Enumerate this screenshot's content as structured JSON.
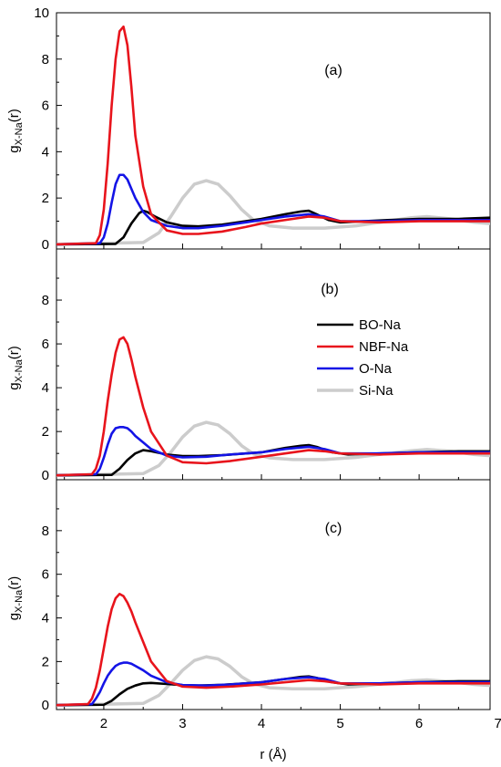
{
  "chart_data": {
    "type": "line",
    "xlabel": "r (Å)",
    "ylabel_main": "g",
    "ylabel_sub": "X-Na",
    "ylabel_suffix": "(r)",
    "xlim": [
      1.4,
      6.9
    ],
    "xticks": [
      2,
      3,
      4,
      5,
      6,
      7
    ],
    "ylim": [
      -0.2,
      10
    ],
    "yticks": [
      0,
      2,
      4,
      6,
      8,
      10
    ],
    "legend": {
      "placement": "inside panel (b), right",
      "entries": [
        "BO-Na",
        "NBF-Na",
        "O-Na",
        "Si-Na"
      ]
    },
    "series_colors": {
      "BO-Na": "#000000",
      "NBF-Na": "#e8141c",
      "O-Na": "#1414e6",
      "Si-Na": "#cccccc"
    },
    "panels": [
      {
        "label": "(a)",
        "show_top_ytick": true,
        "series": [
          {
            "name": "BO-Na",
            "x": [
              1.4,
              2.15,
              2.25,
              2.35,
              2.45,
              2.5,
              2.55,
              2.65,
              2.8,
              3.0,
              3.2,
              3.5,
              3.8,
              4.0,
              4.3,
              4.5,
              4.6,
              4.7,
              4.85,
              5.0,
              5.3,
              5.6,
              6.0,
              6.5,
              6.9
            ],
            "y": [
              0,
              0.02,
              0.3,
              0.9,
              1.35,
              1.45,
              1.4,
              1.2,
              0.95,
              0.8,
              0.78,
              0.85,
              1.0,
              1.1,
              1.3,
              1.42,
              1.45,
              1.3,
              1.05,
              0.95,
              1.0,
              1.05,
              1.1,
              1.1,
              1.15
            ]
          },
          {
            "name": "NBF-Na",
            "x": [
              1.4,
              1.9,
              1.95,
              2.0,
              2.05,
              2.1,
              2.15,
              2.2,
              2.25,
              2.3,
              2.35,
              2.4,
              2.5,
              2.6,
              2.8,
              3.0,
              3.2,
              3.5,
              3.8,
              4.0,
              4.3,
              4.6,
              4.8,
              5.0,
              5.5,
              6.0,
              6.5,
              6.9
            ],
            "y": [
              0,
              0.05,
              0.4,
              1.5,
              3.5,
              6.0,
              8.0,
              9.2,
              9.4,
              8.6,
              6.8,
              4.7,
              2.5,
              1.3,
              0.6,
              0.45,
              0.45,
              0.55,
              0.75,
              0.9,
              1.05,
              1.2,
              1.15,
              1.0,
              0.95,
              1.0,
              1.0,
              1.0
            ]
          },
          {
            "name": "O-Na",
            "x": [
              1.4,
              1.95,
              2.0,
              2.05,
              2.1,
              2.15,
              2.2,
              2.25,
              2.3,
              2.35,
              2.4,
              2.5,
              2.6,
              2.8,
              3.0,
              3.2,
              3.5,
              3.8,
              4.0,
              4.3,
              4.6,
              4.8,
              5.0,
              5.5,
              6.0,
              6.5,
              6.9
            ],
            "y": [
              0,
              0.05,
              0.3,
              0.9,
              1.8,
              2.6,
              3.0,
              3.0,
              2.8,
              2.4,
              2.0,
              1.4,
              1.05,
              0.8,
              0.7,
              0.7,
              0.8,
              0.95,
              1.05,
              1.2,
              1.3,
              1.2,
              1.0,
              1.0,
              1.05,
              1.05,
              1.05
            ]
          },
          {
            "name": "Si-Na",
            "x": [
              1.4,
              2.5,
              2.7,
              2.85,
              3.0,
              3.15,
              3.3,
              3.45,
              3.6,
              3.75,
              3.9,
              4.1,
              4.4,
              4.8,
              5.2,
              5.6,
              5.9,
              6.1,
              6.4,
              6.7,
              6.9
            ],
            "y": [
              0,
              0.08,
              0.5,
              1.2,
              2.0,
              2.6,
              2.75,
              2.6,
              2.1,
              1.5,
              1.05,
              0.8,
              0.7,
              0.7,
              0.8,
              1.0,
              1.15,
              1.2,
              1.1,
              0.95,
              0.9
            ]
          }
        ]
      },
      {
        "label": "(b)",
        "show_top_ytick": false,
        "series": [
          {
            "name": "BO-Na",
            "x": [
              1.4,
              2.1,
              2.2,
              2.3,
              2.4,
              2.5,
              2.6,
              2.8,
              3.0,
              3.2,
              3.5,
              4.0,
              4.3,
              4.5,
              4.6,
              4.7,
              4.9,
              5.1,
              5.5,
              6.0,
              6.5,
              6.9
            ],
            "y": [
              0,
              0.02,
              0.3,
              0.7,
              1.0,
              1.15,
              1.1,
              0.95,
              0.88,
              0.88,
              0.92,
              1.05,
              1.25,
              1.35,
              1.38,
              1.3,
              1.05,
              0.95,
              1.0,
              1.05,
              1.1,
              1.1
            ]
          },
          {
            "name": "NBF-Na",
            "x": [
              1.4,
              1.85,
              1.9,
              1.95,
              2.0,
              2.05,
              2.1,
              2.15,
              2.2,
              2.25,
              2.3,
              2.35,
              2.4,
              2.5,
              2.6,
              2.8,
              3.0,
              3.3,
              3.6,
              4.0,
              4.3,
              4.6,
              4.8,
              5.0,
              5.5,
              6.0,
              6.5,
              6.9
            ],
            "y": [
              0,
              0.05,
              0.3,
              0.9,
              2.0,
              3.4,
              4.6,
              5.6,
              6.2,
              6.3,
              6.0,
              5.3,
              4.5,
              3.1,
              2.0,
              0.9,
              0.6,
              0.55,
              0.65,
              0.85,
              1.0,
              1.15,
              1.1,
              1.0,
              0.95,
              1.0,
              1.0,
              1.0
            ]
          },
          {
            "name": "O-Na",
            "x": [
              1.4,
              1.9,
              1.95,
              2.0,
              2.05,
              2.1,
              2.15,
              2.2,
              2.25,
              2.3,
              2.35,
              2.4,
              2.5,
              2.6,
              2.8,
              3.0,
              3.3,
              3.6,
              4.0,
              4.3,
              4.6,
              4.8,
              5.0,
              5.5,
              6.0,
              6.5,
              6.9
            ],
            "y": [
              0,
              0.05,
              0.3,
              0.8,
              1.4,
              1.9,
              2.15,
              2.2,
              2.2,
              2.15,
              2.0,
              1.8,
              1.5,
              1.2,
              0.9,
              0.82,
              0.85,
              0.95,
              1.05,
              1.2,
              1.3,
              1.2,
              1.0,
              1.0,
              1.05,
              1.05,
              1.05
            ]
          },
          {
            "name": "Si-Na",
            "x": [
              1.4,
              2.5,
              2.7,
              2.85,
              3.0,
              3.15,
              3.3,
              3.45,
              3.6,
              3.75,
              3.9,
              4.1,
              4.4,
              4.8,
              5.2,
              5.6,
              5.9,
              6.1,
              6.4,
              6.7,
              6.9
            ],
            "y": [
              0,
              0.08,
              0.45,
              1.05,
              1.75,
              2.25,
              2.42,
              2.3,
              1.9,
              1.35,
              0.98,
              0.8,
              0.72,
              0.72,
              0.82,
              1.0,
              1.12,
              1.18,
              1.1,
              0.95,
              0.9
            ]
          }
        ]
      },
      {
        "label": "(c)",
        "show_top_ytick": false,
        "series": [
          {
            "name": "BO-Na",
            "x": [
              1.4,
              2.0,
              2.1,
              2.2,
              2.3,
              2.4,
              2.5,
              2.6,
              2.8,
              3.0,
              3.2,
              3.5,
              4.0,
              4.3,
              4.5,
              4.6,
              4.7,
              4.9,
              5.1,
              5.5,
              6.0,
              6.5,
              6.9
            ],
            "y": [
              0,
              0.02,
              0.2,
              0.5,
              0.75,
              0.9,
              1.0,
              1.02,
              0.97,
              0.92,
              0.9,
              0.93,
              1.05,
              1.2,
              1.3,
              1.32,
              1.25,
              1.05,
              0.95,
              1.0,
              1.05,
              1.1,
              1.1
            ]
          },
          {
            "name": "NBF-Na",
            "x": [
              1.4,
              1.8,
              1.85,
              1.9,
              1.95,
              2.0,
              2.05,
              2.1,
              2.15,
              2.2,
              2.25,
              2.3,
              2.35,
              2.4,
              2.5,
              2.6,
              2.8,
              3.0,
              3.3,
              3.6,
              4.0,
              4.3,
              4.6,
              4.8,
              5.0,
              5.5,
              6.0,
              6.5,
              6.9
            ],
            "y": [
              0,
              0.05,
              0.3,
              0.8,
              1.6,
              2.6,
              3.6,
              4.4,
              4.9,
              5.1,
              5.0,
              4.7,
              4.3,
              3.8,
              2.9,
              2.0,
              1.1,
              0.85,
              0.8,
              0.85,
              0.95,
              1.05,
              1.15,
              1.1,
              1.0,
              0.95,
              1.0,
              1.0,
              1.0
            ]
          },
          {
            "name": "O-Na",
            "x": [
              1.4,
              1.85,
              1.9,
              1.95,
              2.0,
              2.05,
              2.1,
              2.15,
              2.2,
              2.25,
              2.3,
              2.35,
              2.4,
              2.5,
              2.6,
              2.8,
              3.0,
              3.3,
              3.6,
              4.0,
              4.3,
              4.6,
              4.8,
              5.0,
              5.5,
              6.0,
              6.5,
              6.9
            ],
            "y": [
              0,
              0.05,
              0.3,
              0.6,
              1.0,
              1.35,
              1.6,
              1.8,
              1.9,
              1.95,
              1.95,
              1.9,
              1.8,
              1.6,
              1.35,
              1.05,
              0.92,
              0.9,
              0.95,
              1.05,
              1.2,
              1.28,
              1.2,
              1.0,
              1.0,
              1.05,
              1.05,
              1.05
            ]
          },
          {
            "name": "Si-Na",
            "x": [
              1.4,
              2.5,
              2.7,
              2.85,
              3.0,
              3.15,
              3.3,
              3.45,
              3.6,
              3.75,
              3.9,
              4.1,
              4.4,
              4.8,
              5.2,
              5.6,
              5.9,
              6.1,
              6.4,
              6.7,
              6.9
            ],
            "y": [
              0,
              0.08,
              0.45,
              1.0,
              1.6,
              2.05,
              2.22,
              2.12,
              1.78,
              1.3,
              0.98,
              0.8,
              0.75,
              0.75,
              0.85,
              1.0,
              1.12,
              1.16,
              1.08,
              0.95,
              0.9
            ]
          }
        ]
      }
    ]
  }
}
